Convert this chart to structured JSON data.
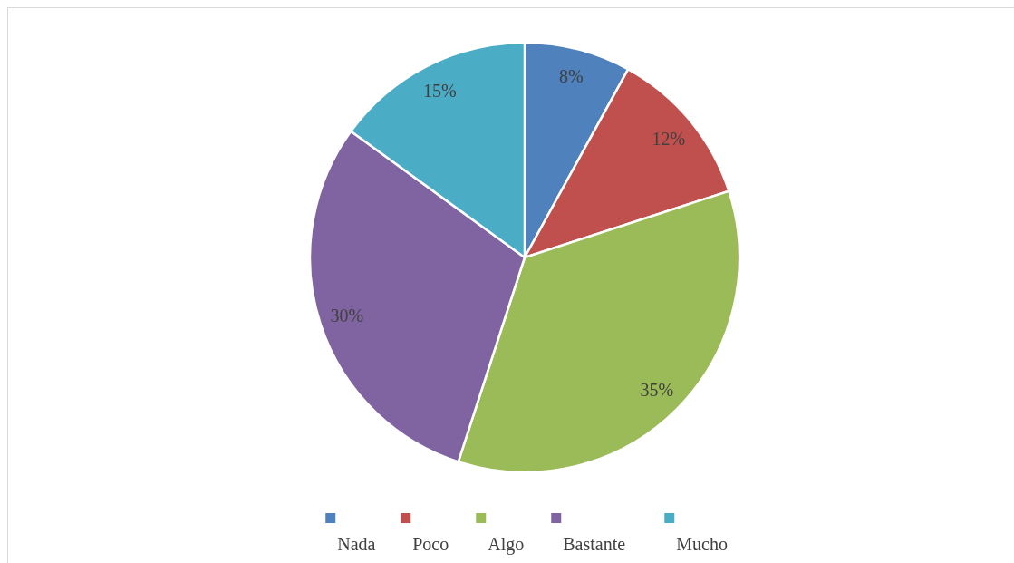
{
  "chart_data": {
    "type": "pie",
    "categories": [
      "Nada",
      "Poco",
      "Algo",
      "Bastante",
      "Mucho"
    ],
    "values": [
      8,
      12,
      35,
      30,
      15
    ],
    "colors": [
      "#4f81bd",
      "#c0504d",
      "#9bbb59",
      "#8064a2",
      "#4bacc6"
    ],
    "value_labels": [
      "8%",
      "12%",
      "35%",
      "30%",
      "15%"
    ],
    "legend": "bottom"
  }
}
